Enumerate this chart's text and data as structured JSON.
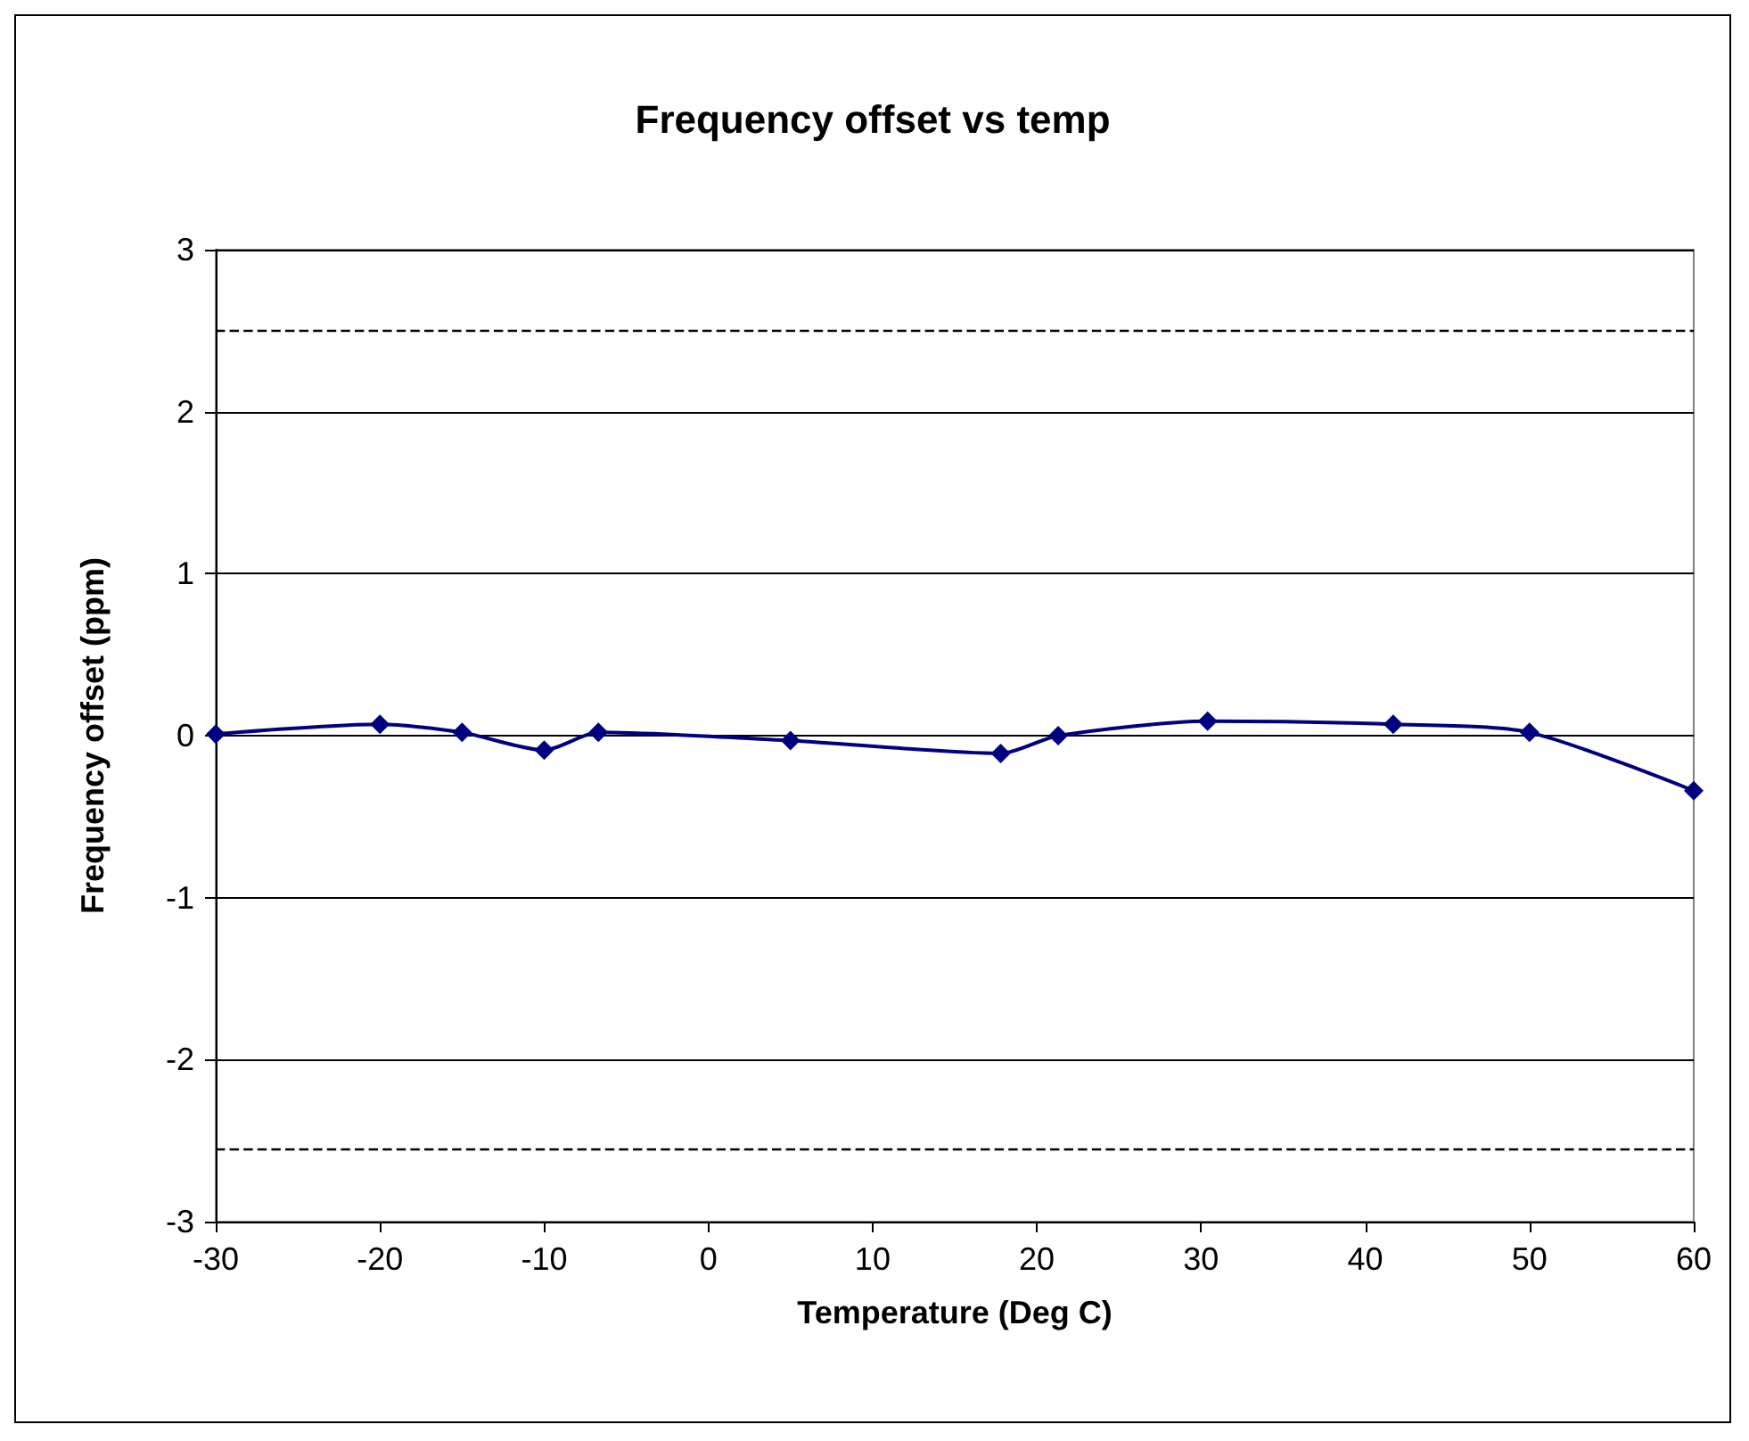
{
  "chart_data": {
    "type": "line",
    "title": "Frequency offset vs temp",
    "xlabel": "Temperature (Deg C)",
    "ylabel": "Frequency offset (ppm)",
    "x": [
      -30,
      -20,
      -15,
      -10,
      -6.7,
      5,
      17.8,
      21.3,
      30.4,
      41.7,
      50,
      60
    ],
    "series": [
      {
        "color": "#000080",
        "values": [
          0.01,
          0.07,
          0.02,
          -0.09,
          0.02,
          -0.03,
          -0.11,
          0,
          0.09,
          0.07,
          0.02,
          -0.34
        ]
      }
    ],
    "xlim": [
      -30,
      60
    ],
    "xticks": [
      -30,
      -20,
      -10,
      0,
      10,
      20,
      30,
      40,
      50,
      60
    ],
    "ylim": [
      -3,
      3
    ],
    "yticks": [
      -3,
      -2,
      -1,
      0,
      1,
      2,
      3
    ],
    "ref_lines": [
      {
        "axis": "y",
        "value": 2.5,
        "color": "#000000",
        "line_style": "dashed"
      },
      {
        "axis": "y",
        "value": -2.55,
        "color": "#000000",
        "line_style": "dashed"
      }
    ],
    "grid": "y",
    "marker": "diamond",
    "line_style": "solid"
  }
}
